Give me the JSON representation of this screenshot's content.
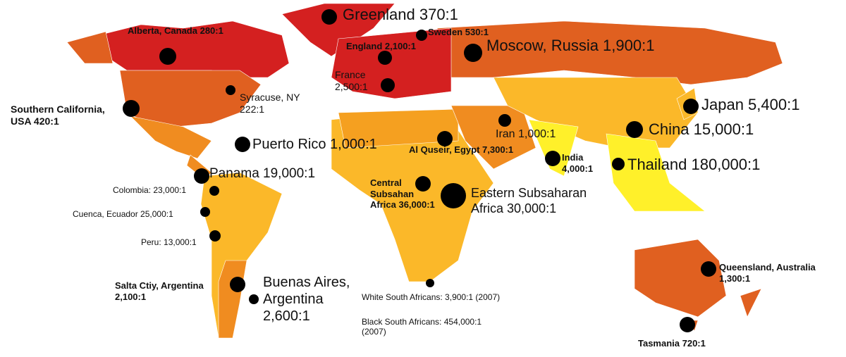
{
  "labels": [
    "Greenland 370:1",
    "Alberta, Canada 280:1",
    "Sweden 530:1",
    "England 2,100:1",
    "Moscow, Russia 1,900:1",
    "France\n2,500:1",
    "Syracuse, NY\n222:1",
    "Southern California,\nUSA 420:1",
    "Japan 5,400:1",
    "China 15,000:1",
    "Iran 1,000:1",
    "Puerto Rico 1,000:1",
    "Al Quseir, Egypt 7,300:1",
    "India\n4,000:1",
    "Thailand 180,000:1",
    "Panama 19,000:1",
    "Central\nSubsahan\nAfrica 36,000:1",
    "Eastern Subsaharan\nAfrica 30,000:1",
    "Colombia: 23,000:1",
    "Cuenca, Ecuador 25,000:1",
    "Peru: 13,000:1",
    "Queensland, Australia\n1,300:1",
    "Salta Ctiy, Argentina\n2,100:1",
    "Buenas Aires,\nArgentina\n2,600:1",
    "White South Africans: 3,900:1 (2007)",
    "Black South Africans: 454,000:1\n(2007)",
    "Tasmania 720:1"
  ]
}
